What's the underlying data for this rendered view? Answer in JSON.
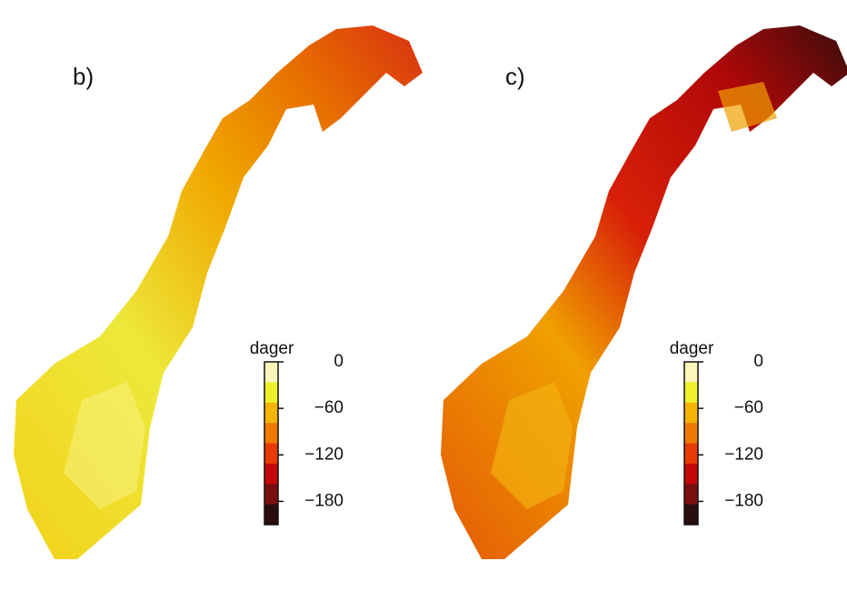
{
  "panels": [
    {
      "label": "b)",
      "legend": {
        "title": "dager",
        "range": [
          -210,
          0
        ],
        "colors": [
          "#fdf6b8",
          "#eef02a",
          "#f5b400",
          "#f07a00",
          "#e83a05",
          "#c40808",
          "#7a0f0f",
          "#2a0d0d"
        ],
        "ticks": [
          {
            "value": 0,
            "label": "0"
          },
          {
            "value": -60,
            "label": "−60"
          },
          {
            "value": -120,
            "label": "−120"
          },
          {
            "value": -180,
            "label": "−180"
          }
        ]
      }
    },
    {
      "label": "c)",
      "legend": {
        "title": "dager",
        "range": [
          -210,
          0
        ],
        "colors": [
          "#fdf6b8",
          "#eef02a",
          "#f5b400",
          "#f07a00",
          "#e83a05",
          "#c40808",
          "#7a0f0f",
          "#2a0d0d"
        ],
        "ticks": [
          {
            "value": 0,
            "label": "0"
          },
          {
            "value": -60,
            "label": "−60"
          },
          {
            "value": -120,
            "label": "−120"
          },
          {
            "value": -180,
            "label": "−180"
          }
        ]
      }
    }
  ]
}
